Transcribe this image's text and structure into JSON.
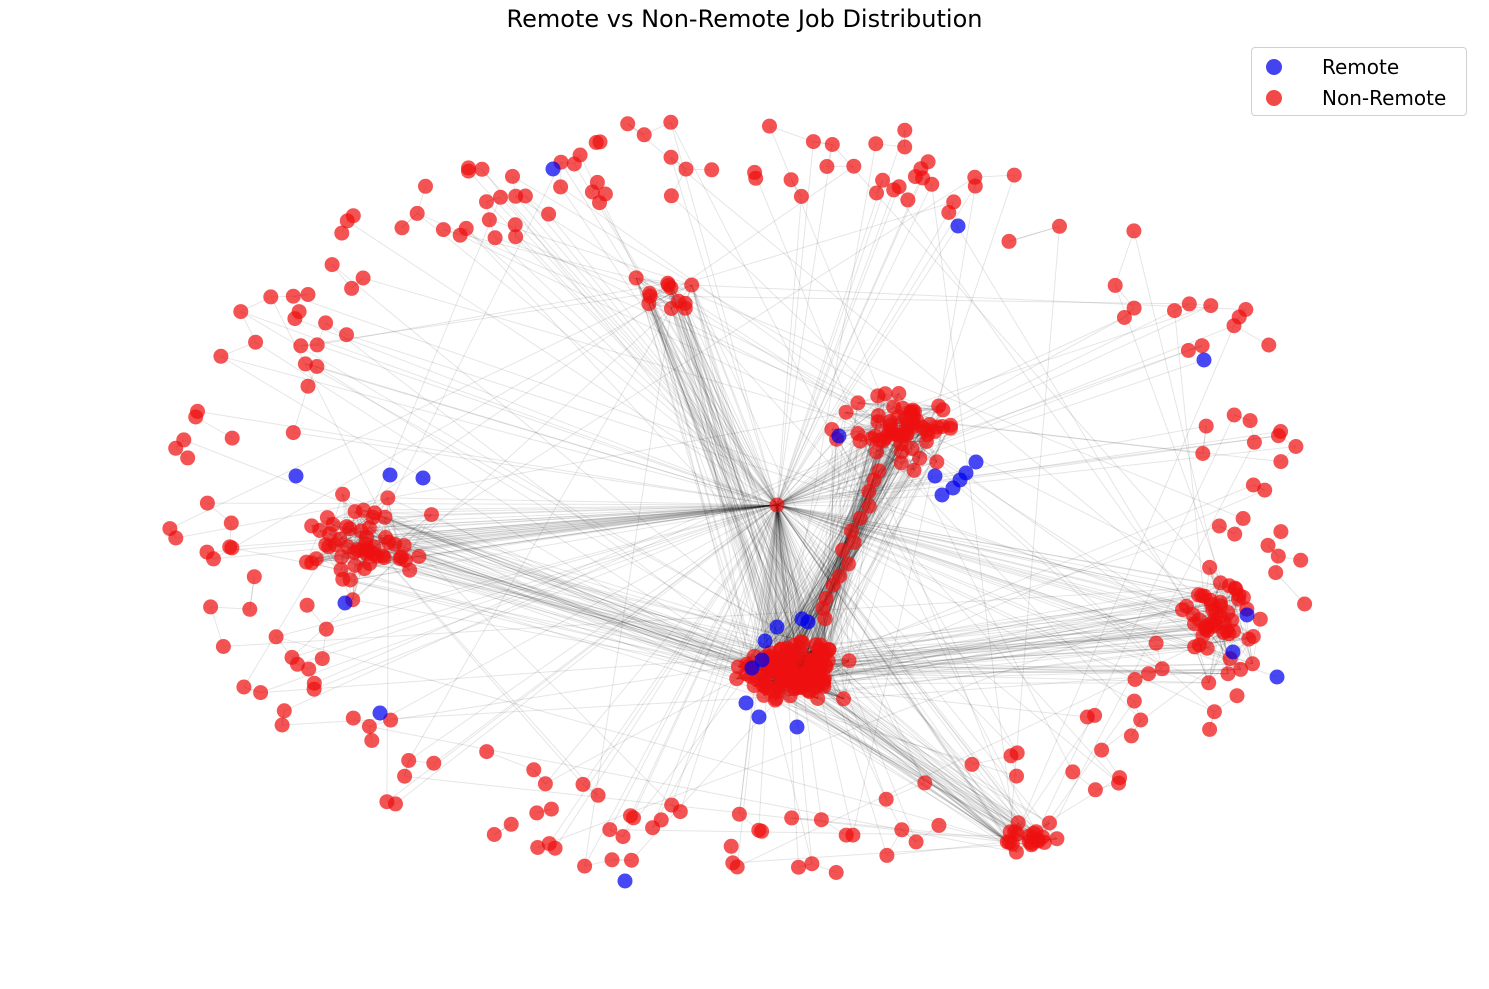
{
  "title": "Remote vs Non-Remote Job Distribution",
  "colors": {
    "remote": "#0000ee",
    "non_remote": "#ee1111",
    "edge": "#000000"
  },
  "legend": {
    "placement": "top-right",
    "items": [
      {
        "label": "Remote",
        "color": "#4343ef"
      },
      {
        "label": "Non-Remote",
        "color": "#f24848"
      }
    ]
  },
  "graph": {
    "node_count_remote": 28,
    "node_count_non_remote": 480
  }
}
